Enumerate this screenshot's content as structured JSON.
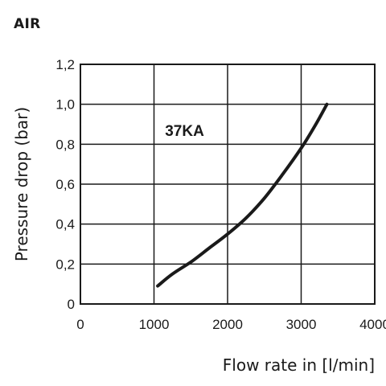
{
  "heading": "AIR",
  "chart_data": {
    "type": "line",
    "title": "",
    "xlabel": "Flow rate in [l/min]",
    "ylabel": "Pressure drop (bar)",
    "xlim": [
      0,
      4000
    ],
    "ylim": [
      0,
      1.2
    ],
    "x_ticks": [
      0,
      1000,
      2000,
      3000,
      4000
    ],
    "x_tick_labels": [
      "0",
      "1000",
      "2000",
      "3000",
      "4000"
    ],
    "y_ticks": [
      0,
      0.2,
      0.4,
      0.6,
      0.8,
      1.0,
      1.2
    ],
    "y_tick_labels": [
      "0",
      "0,2",
      "0,4",
      "0,6",
      "0,8",
      "1,0",
      "1,2"
    ],
    "grid": true,
    "series": [
      {
        "name": "37KA",
        "x": [
          1050,
          1250,
          1500,
          1750,
          2000,
          2250,
          2500,
          2750,
          3000,
          3200,
          3350
        ],
        "y": [
          0.09,
          0.15,
          0.21,
          0.28,
          0.35,
          0.43,
          0.53,
          0.65,
          0.78,
          0.9,
          1.0
        ]
      }
    ],
    "annotations": [
      {
        "text": "37KA",
        "x": 1150,
        "y": 0.87
      }
    ]
  }
}
